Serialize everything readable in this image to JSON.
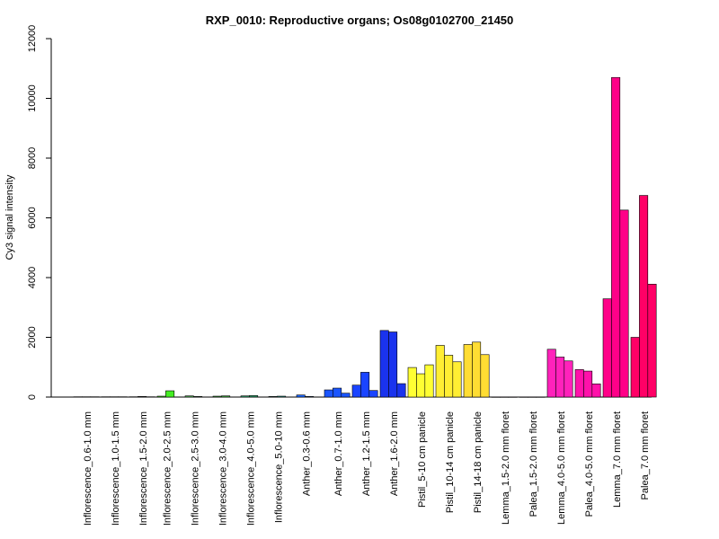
{
  "chart_data": {
    "type": "bar",
    "title": "RXP_0010: Reproductive organs; Os08g0102700_21450",
    "xlabel": "",
    "ylabel": "Cy3 signal intensity",
    "ylim": [
      0,
      12000
    ],
    "yticks": [
      0,
      2000,
      4000,
      6000,
      8000,
      10000,
      12000
    ],
    "legend": "none",
    "grid": false,
    "groups": [
      {
        "label": "Inflorescence_0.6-1.0 mm",
        "color": "#3b3b3b",
        "values": [
          10,
          10,
          10
        ]
      },
      {
        "label": "Inflorescence_1.0-1.5 mm",
        "color": "#3b3b3b",
        "values": [
          10,
          10,
          10
        ]
      },
      {
        "label": "Inflorescence_1.5-2.0 mm",
        "color": "#3b3b3b",
        "values": [
          10,
          20,
          10
        ]
      },
      {
        "label": "Inflorescence_2.0-2.5 mm",
        "color": "#44ee22",
        "values": [
          30,
          210
        ]
      },
      {
        "label": "Inflorescence_2.5-3.0 mm",
        "color": "#4caf50",
        "values": [
          40,
          20
        ]
      },
      {
        "label": "Inflorescence_3.0-4.0 mm",
        "color": "#3aa83a",
        "values": [
          30,
          40
        ]
      },
      {
        "label": "Inflorescence_4.0-5.0 mm",
        "color": "#2ea06a",
        "values": [
          40,
          50
        ]
      },
      {
        "label": "Inflorescence_5.0-10 mm",
        "color": "#1f9f8f",
        "values": [
          20,
          30
        ]
      },
      {
        "label": "Anther_0.3-0.6 mm",
        "color": "#1a66ff",
        "values": [
          70,
          20
        ]
      },
      {
        "label": "Anther_0.7-1.0 mm",
        "color": "#1a55ff",
        "values": [
          240,
          300,
          130
        ]
      },
      {
        "label": "Anther_1.2-1.5 mm",
        "color": "#1a44ff",
        "values": [
          400,
          830,
          220
        ]
      },
      {
        "label": "Anther_1.6-2.0 mm",
        "color": "#1a33ee",
        "values": [
          2230,
          2180,
          450
        ]
      },
      {
        "label": "Pistil_5-10 cm panicle",
        "color": "#ffff33",
        "values": [
          990,
          780,
          1080
        ]
      },
      {
        "label": "Pistil_10-14 cm panicle",
        "color": "#ffee33",
        "values": [
          1730,
          1400,
          1180
        ]
      },
      {
        "label": "Pistil_14-18 cm panicle",
        "color": "#ffdd33",
        "values": [
          1760,
          1840,
          1420
        ]
      },
      {
        "label": "Lemma_1.5-2.0 mm floret",
        "color": "#ff33cc",
        "values": [
          5,
          5,
          5
        ]
      },
      {
        "label": "Palea_1.5-2.0 mm floret",
        "color": "#ff33cc",
        "values": [
          5,
          5,
          5
        ]
      },
      {
        "label": "Lemma_4.0-5.0 mm floret",
        "color": "#ff22bb",
        "values": [
          1600,
          1340,
          1210
        ]
      },
      {
        "label": "Palea_4.0-5.0 mm floret",
        "color": "#ff11aa",
        "values": [
          920,
          870,
          440
        ]
      },
      {
        "label": "Lemma_7.0 mm floret",
        "color": "#ff0088",
        "values": [
          3290,
          10700,
          6260
        ]
      },
      {
        "label": "Palea_7.0 mm floret",
        "color": "#ff0066",
        "values": [
          2000,
          6750,
          3780
        ]
      }
    ]
  }
}
